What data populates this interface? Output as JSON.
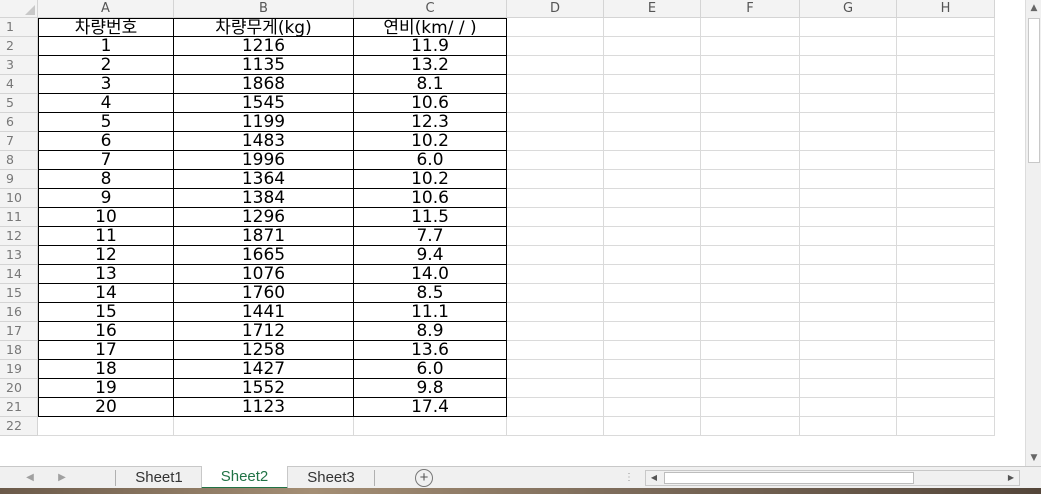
{
  "columns": [
    "A",
    "B",
    "C",
    "D",
    "E",
    "F",
    "G",
    "H"
  ],
  "rows": [
    "1",
    "2",
    "3",
    "4",
    "5",
    "6",
    "7",
    "8",
    "9",
    "10",
    "11",
    "12",
    "13",
    "14",
    "15",
    "16",
    "17",
    "18",
    "19",
    "20",
    "21",
    "22"
  ],
  "table": {
    "headers": [
      "차량번호",
      "차량무게(kg)",
      "연비(km/ / )"
    ],
    "data": [
      [
        "1",
        "1216",
        "11.9"
      ],
      [
        "2",
        "1135",
        "13.2"
      ],
      [
        "3",
        "1868",
        "8.1"
      ],
      [
        "4",
        "1545",
        "10.6"
      ],
      [
        "5",
        "1199",
        "12.3"
      ],
      [
        "6",
        "1483",
        "10.2"
      ],
      [
        "7",
        "1996",
        "6.0"
      ],
      [
        "8",
        "1364",
        "10.2"
      ],
      [
        "9",
        "1384",
        "10.6"
      ],
      [
        "10",
        "1296",
        "11.5"
      ],
      [
        "11",
        "1871",
        "7.7"
      ],
      [
        "12",
        "1665",
        "9.4"
      ],
      [
        "13",
        "1076",
        "14.0"
      ],
      [
        "14",
        "1760",
        "8.5"
      ],
      [
        "15",
        "1441",
        "11.1"
      ],
      [
        "16",
        "1712",
        "8.9"
      ],
      [
        "17",
        "1258",
        "13.6"
      ],
      [
        "18",
        "1427",
        "6.0"
      ],
      [
        "19",
        "1552",
        "9.8"
      ],
      [
        "20",
        "1123",
        "17.4"
      ]
    ]
  },
  "sheets": {
    "tabs": [
      "Sheet1",
      "Sheet2",
      "Sheet3"
    ],
    "active": "Sheet2",
    "add_icon": "plus-circle-icon",
    "add_glyph": "+"
  },
  "colors": {
    "active_tab": "#217346",
    "header_bg": "#f3f3f3"
  }
}
